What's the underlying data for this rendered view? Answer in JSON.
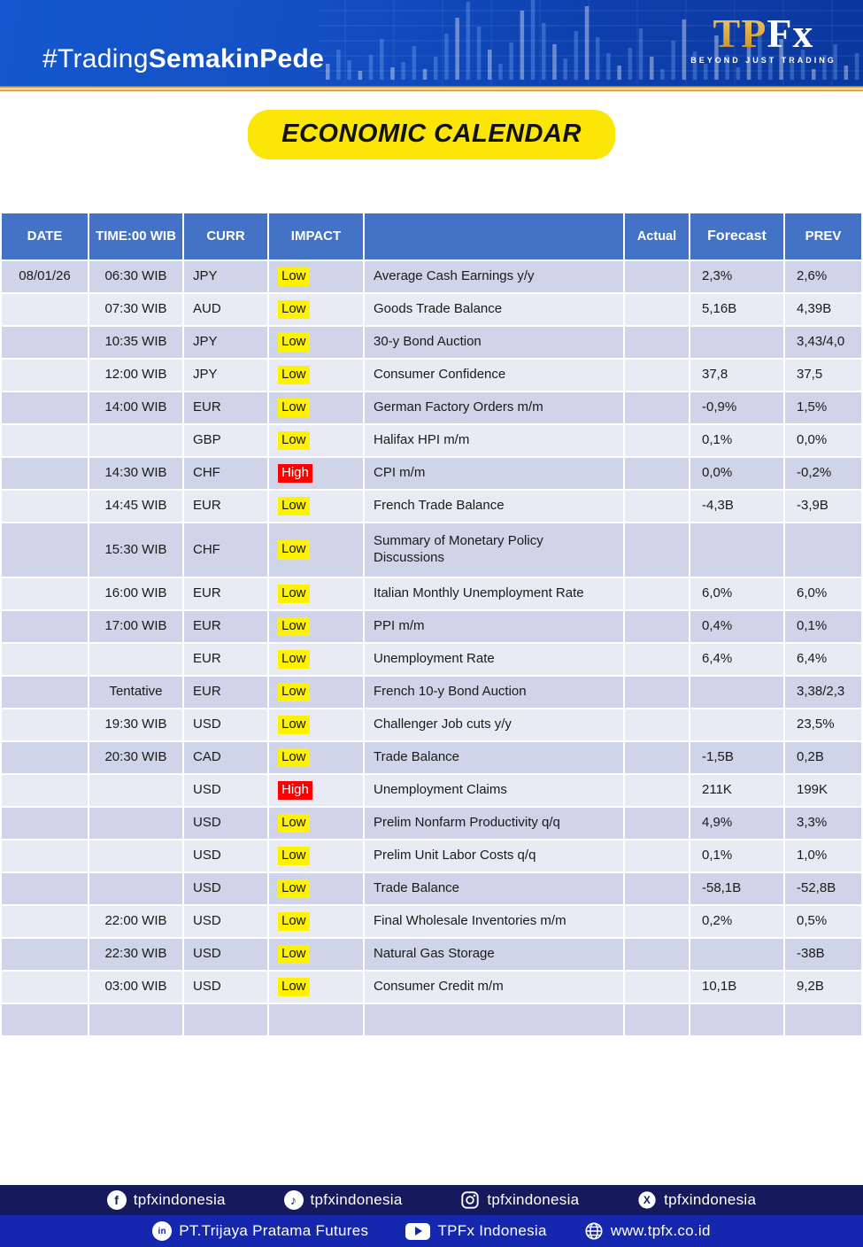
{
  "banner": {
    "hashtag_regular": "#Trading",
    "hashtag_bold": "SemakinPede",
    "logo_tp": "TP",
    "logo_fx": "Fx",
    "logo_tagline": "BEYOND JUST TRADING"
  },
  "title": "ECONOMIC CALENDAR",
  "table": {
    "headers": {
      "date": "DATE",
      "time": "TIME:00 WIB",
      "curr": "CURR",
      "impact": "IMPACT",
      "event": "",
      "actual": "Actual",
      "forecast": "Forecast",
      "prev": "PREV"
    },
    "rows": [
      {
        "date": "08/01/26",
        "time": "06:30 WIB",
        "curr": "JPY",
        "impact": "Low",
        "event": "Average Cash Earnings y/y",
        "actual": "",
        "forecast": "2,3%",
        "prev": "2,6%"
      },
      {
        "date": "",
        "time": "07:30 WIB",
        "curr": "AUD",
        "impact": "Low",
        "event": "Goods Trade Balance",
        "actual": "",
        "forecast": "5,16B",
        "prev": "4,39B"
      },
      {
        "date": "",
        "time": "10:35 WIB",
        "curr": "JPY",
        "impact": "Low",
        "event": "30-y Bond Auction",
        "actual": "",
        "forecast": "",
        "prev": "3,43/4,0"
      },
      {
        "date": "",
        "time": "12:00 WIB",
        "curr": "JPY",
        "impact": "Low",
        "event": "Consumer Confidence",
        "actual": "",
        "forecast": "37,8",
        "prev": "37,5"
      },
      {
        "date": "",
        "time": "14:00 WIB",
        "curr": "EUR",
        "impact": "Low",
        "event": "German Factory Orders m/m",
        "actual": "",
        "forecast": "-0,9%",
        "prev": "1,5%"
      },
      {
        "date": "",
        "time": "",
        "curr": "GBP",
        "impact": "Low",
        "event": "Halifax HPI m/m",
        "actual": "",
        "forecast": "0,1%",
        "prev": "0,0%"
      },
      {
        "date": "",
        "time": "14:30 WIB",
        "curr": "CHF",
        "impact": "High",
        "event": "CPI m/m",
        "actual": "",
        "forecast": "0,0%",
        "prev": "-0,2%"
      },
      {
        "date": "",
        "time": "14:45 WIB",
        "curr": "EUR",
        "impact": "Low",
        "event": "French Trade Balance",
        "actual": "",
        "forecast": "-4,3B",
        "prev": "-3,9B"
      },
      {
        "date": "",
        "time": "15:30 WIB",
        "curr": "CHF",
        "impact": "Low",
        "event": "Summary of Monetary Policy Discussions",
        "actual": "",
        "forecast": "",
        "prev": "",
        "tall": true
      },
      {
        "date": "",
        "time": "16:00 WIB",
        "curr": "EUR",
        "impact": "Low",
        "event": "Italian Monthly Unemployment Rate",
        "actual": "",
        "forecast": "6,0%",
        "prev": "6,0%"
      },
      {
        "date": "",
        "time": "17:00 WIB",
        "curr": "EUR",
        "impact": "Low",
        "event": "PPI m/m",
        "actual": "",
        "forecast": "0,4%",
        "prev": "0,1%"
      },
      {
        "date": "",
        "time": "",
        "curr": "EUR",
        "impact": "Low",
        "event": "Unemployment Rate",
        "actual": "",
        "forecast": "6,4%",
        "prev": "6,4%"
      },
      {
        "date": "",
        "time": "Tentative",
        "curr": "EUR",
        "impact": "Low",
        "event": "French 10-y Bond Auction",
        "actual": "",
        "forecast": "",
        "prev": "3,38/2,3"
      },
      {
        "date": "",
        "time": "19:30 WIB",
        "curr": "USD",
        "impact": "Low",
        "event": "Challenger Job cuts y/y",
        "actual": "",
        "forecast": "",
        "prev": "23,5%"
      },
      {
        "date": "",
        "time": "20:30 WIB",
        "curr": "CAD",
        "impact": "Low",
        "event": "Trade Balance",
        "actual": "",
        "forecast": "-1,5B",
        "prev": "0,2B"
      },
      {
        "date": "",
        "time": "",
        "curr": "USD",
        "impact": "High",
        "event": "Unemployment Claims",
        "actual": "",
        "forecast": "211K",
        "prev": "199K"
      },
      {
        "date": "",
        "time": "",
        "curr": "USD",
        "impact": "Low",
        "event": "Prelim Nonfarm Productivity q/q",
        "actual": "",
        "forecast": "4,9%",
        "prev": "3,3%"
      },
      {
        "date": "",
        "time": "",
        "curr": "USD",
        "impact": "Low",
        "event": "Prelim Unit Labor Costs q/q",
        "actual": "",
        "forecast": "0,1%",
        "prev": "1,0%"
      },
      {
        "date": "",
        "time": "",
        "curr": "USD",
        "impact": "Low",
        "event": "Trade Balance",
        "actual": "",
        "forecast": "-58,1B",
        "prev": "-52,8B"
      },
      {
        "date": "",
        "time": "22:00 WIB",
        "curr": "USD",
        "impact": "Low",
        "event": "Final Wholesale Inventories m/m",
        "actual": "",
        "forecast": "0,2%",
        "prev": "0,5%"
      },
      {
        "date": "",
        "time": "22:30 WIB",
        "curr": "USD",
        "impact": "Low",
        "event": "Natural Gas Storage",
        "actual": "",
        "forecast": "",
        "prev": "-38B"
      },
      {
        "date": "",
        "time": "03:00 WIB",
        "curr": "USD",
        "impact": "Low",
        "event": "Consumer Credit m/m",
        "actual": "",
        "forecast": "10,1B",
        "prev": "9,2B"
      },
      {
        "date": "",
        "time": "",
        "curr": "",
        "impact": "",
        "event": "",
        "actual": "",
        "forecast": "",
        "prev": ""
      }
    ]
  },
  "footer": {
    "social": [
      {
        "icon": "facebook-icon",
        "label": "tpfxindonesia"
      },
      {
        "icon": "tiktok-icon",
        "label": "tpfxindonesia"
      },
      {
        "icon": "instagram-icon",
        "label": "tpfxindonesia"
      },
      {
        "icon": "x-icon",
        "label": "tpfxindonesia"
      }
    ],
    "info": [
      {
        "icon": "linkedin-icon",
        "label": "PT.Trijaya Pratama Futures"
      },
      {
        "icon": "youtube-icon",
        "label": "TPFx Indonesia"
      },
      {
        "icon": "globe-icon",
        "label": "www.tpfx.co.id"
      }
    ]
  },
  "colors": {
    "banner_blue": "#1350C4",
    "gold": "#E8B853",
    "title_pill_yellow": "#FCE607",
    "header_blue": "#4472C4",
    "row_dark": "#D0D4E8",
    "row_light": "#E9EBF4",
    "impact_low_bg": "#FFF200",
    "impact_high_bg": "#FF0000",
    "footer_navy": "#161A5C",
    "footer_blue": "#1527AE"
  }
}
